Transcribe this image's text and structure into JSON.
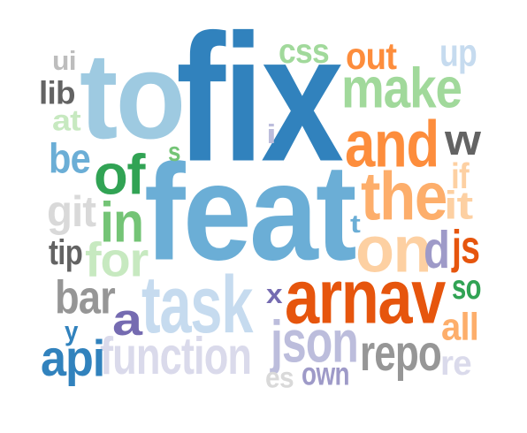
{
  "palette": {
    "blue_dark": "#3182bd",
    "blue_mid": "#6baed6",
    "blue_light": "#9ecae1",
    "blue_pale": "#c6dbef",
    "orange_dark": "#e6550d",
    "orange_mid": "#fd8d3c",
    "orange_light": "#fdae6b",
    "orange_pale": "#fdd0a2",
    "green_dark": "#31a354",
    "green_mid": "#74c476",
    "green_light": "#a1d99b",
    "green_pale": "#c7e9c0",
    "purple_dark": "#756bb1",
    "purple_mid": "#9e9ac8",
    "purple_light": "#bcbddc",
    "purple_pale": "#dadaeb",
    "gray_dark": "#636363",
    "gray_mid": "#969696",
    "gray_light": "#bdbdbd",
    "gray_pale": "#d9d9d9"
  },
  "words": [
    {
      "text": "fix",
      "color": "blue_dark"
    },
    {
      "text": "to",
      "color": "blue_light"
    },
    {
      "text": "feat",
      "color": "blue_mid"
    },
    {
      "text": "task",
      "color": "blue_pale"
    },
    {
      "text": "arnav",
      "color": "orange_dark"
    },
    {
      "text": "and",
      "color": "orange_mid"
    },
    {
      "text": "the",
      "color": "orange_light"
    },
    {
      "text": "on",
      "color": "orange_pale"
    },
    {
      "text": "make",
      "color": "green_light"
    },
    {
      "text": "of",
      "color": "green_dark"
    },
    {
      "text": "in",
      "color": "green_mid"
    },
    {
      "text": "for",
      "color": "green_pale"
    },
    {
      "text": "function",
      "color": "purple_pale"
    },
    {
      "text": "json",
      "color": "purple_light"
    },
    {
      "text": "repo",
      "color": "gray_mid"
    },
    {
      "text": "bar",
      "color": "gray_mid"
    },
    {
      "text": "a",
      "color": "purple_dark"
    },
    {
      "text": "api",
      "color": "blue_dark"
    },
    {
      "text": "out",
      "color": "orange_mid"
    },
    {
      "text": "css",
      "color": "green_light"
    },
    {
      "text": "up",
      "color": "blue_pale"
    },
    {
      "text": "w",
      "color": "gray_dark"
    },
    {
      "text": "if",
      "color": "orange_pale"
    },
    {
      "text": "it",
      "color": "orange_pale"
    },
    {
      "text": "d",
      "color": "purple_mid"
    },
    {
      "text": "js",
      "color": "orange_dark"
    },
    {
      "text": "so",
      "color": "green_dark"
    },
    {
      "text": "all",
      "color": "orange_light"
    },
    {
      "text": "re",
      "color": "purple_pale"
    },
    {
      "text": "own",
      "color": "purple_mid"
    },
    {
      "text": "es",
      "color": "gray_pale"
    },
    {
      "text": "x",
      "color": "purple_dark"
    },
    {
      "text": "t",
      "color": "blue_mid"
    },
    {
      "text": "i",
      "color": "purple_light"
    },
    {
      "text": "s",
      "color": "green_mid"
    },
    {
      "text": "git",
      "color": "gray_pale"
    },
    {
      "text": "tip",
      "color": "gray_dark"
    },
    {
      "text": "be",
      "color": "blue_mid"
    },
    {
      "text": "at",
      "color": "green_pale"
    },
    {
      "text": "lib",
      "color": "gray_dark"
    },
    {
      "text": "ui",
      "color": "gray_light"
    },
    {
      "text": "y",
      "color": "blue_dark"
    }
  ]
}
